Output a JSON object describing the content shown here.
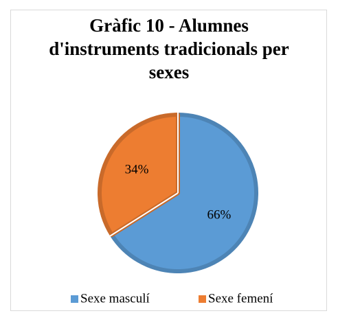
{
  "chart_data": {
    "type": "pie",
    "title": "Gràfic 10 - Alumnes d'instruments tradicionals per sexes",
    "categories": [
      "Sexe masculí",
      "Sexe femení"
    ],
    "values": [
      66,
      34
    ],
    "value_labels": [
      "66%",
      "34%"
    ],
    "colors": [
      "#5b9bd5",
      "#ed7d31"
    ],
    "legend": "bottom"
  }
}
